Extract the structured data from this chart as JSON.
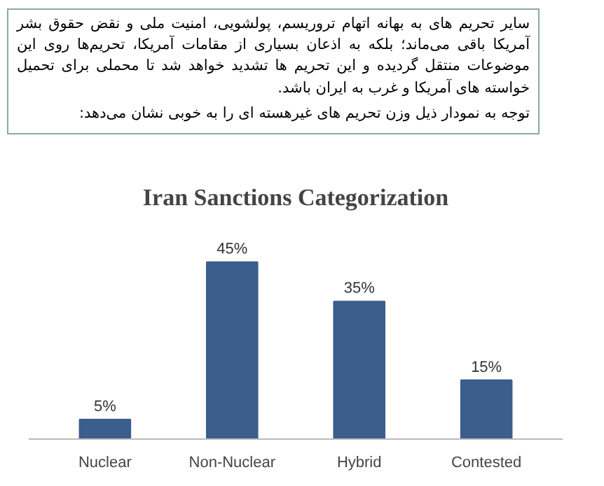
{
  "chart_data": {
    "type": "bar",
    "title": "Iran Sanctions Categorization",
    "annotations": [
      "سایر تحریم های به بهانه اتهام تروریسم، پولشویی، امنیت ملی و نقض حقوق بشر آمریکا باقی می‌ماند؛ بلکه به اذعان بسیاری از مقامات آمریکا، تحریم‌ها روی این موضوعات منتقل گردیده و این تحریم ها تشدید خواهد شد تا محملی برای تحمیل خواسته های آمریکا و غرب به ایران باشد.",
      "توجه به نمودار ذیل وزن تحریم های غیرهسته ای را به خوبی نشان می‌دهد:"
    ],
    "categories": [
      "Nuclear",
      "Non-Nuclear",
      "Hybrid",
      "Contested"
    ],
    "values": [
      5,
      45,
      35,
      15
    ],
    "value_labels": [
      "5%",
      "45%",
      "35%",
      "15%"
    ],
    "color": "#3b5e8c"
  }
}
